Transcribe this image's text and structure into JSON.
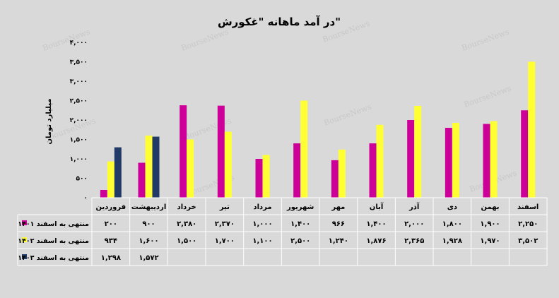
{
  "watermark": "BourseNews",
  "colors": {
    "background": "#d9d9d9",
    "series": [
      "#cc0099",
      "#ffff33",
      "#223a66"
    ],
    "grid": "#ffffff"
  },
  "chart_data": {
    "type": "bar",
    "title": "در آمد ماهانه \"غکورش\"",
    "ylabel": "میلیارد تومان",
    "ylim": [
      0,
      4000
    ],
    "yticks": [
      "۴,۰۰۰",
      "۳,۵۰۰",
      "۳,۰۰۰",
      "۲,۵۰۰",
      "۲,۰۰۰",
      "۱,۵۰۰",
      "۱,۰۰۰",
      "۵۰۰",
      "۰"
    ],
    "grid": false,
    "categories": [
      "فروردین",
      "اردیبهشت",
      "خرداد",
      "تیر",
      "مرداد",
      "شهریور",
      "مهر",
      "آبان",
      "آذر",
      "دی",
      "بهمن",
      "اسفند"
    ],
    "series": [
      {
        "name": "منتهی به اسفند ۱۴۰۱",
        "values": [
          200,
          900,
          2380,
          2370,
          1000,
          1400,
          966,
          1400,
          2000,
          1800,
          1900,
          2250
        ],
        "labels": [
          "۲۰۰",
          "۹۰۰",
          "۲,۳۸۰",
          "۲,۳۷۰",
          "۱,۰۰۰",
          "۱,۴۰۰",
          "۹۶۶",
          "۱,۴۰۰",
          "۲,۰۰۰",
          "۱,۸۰۰",
          "۱,۹۰۰",
          "۲,۲۵۰"
        ]
      },
      {
        "name": "منتهی به اسفند ۱۴۰۲",
        "values": [
          934,
          1600,
          1500,
          1700,
          1100,
          2500,
          1240,
          1876,
          2365,
          1928,
          1970,
          3502
        ],
        "labels": [
          "۹۳۴",
          "۱,۶۰۰",
          "۱,۵۰۰",
          "۱,۷۰۰",
          "۱,۱۰۰",
          "۲,۵۰۰",
          "۱,۲۴۰",
          "۱,۸۷۶",
          "۲,۳۶۵",
          "۱,۹۲۸",
          "۱,۹۷۰",
          "۳,۵۰۲"
        ]
      },
      {
        "name": "منتهی به اسفند ۱۴۰۳",
        "values": [
          1298,
          1572,
          null,
          null,
          null,
          null,
          null,
          null,
          null,
          null,
          null,
          null
        ],
        "labels": [
          "۱,۲۹۸",
          "۱,۵۷۲",
          "",
          "",
          "",
          "",
          "",
          "",
          "",
          "",
          "",
          ""
        ]
      }
    ]
  }
}
